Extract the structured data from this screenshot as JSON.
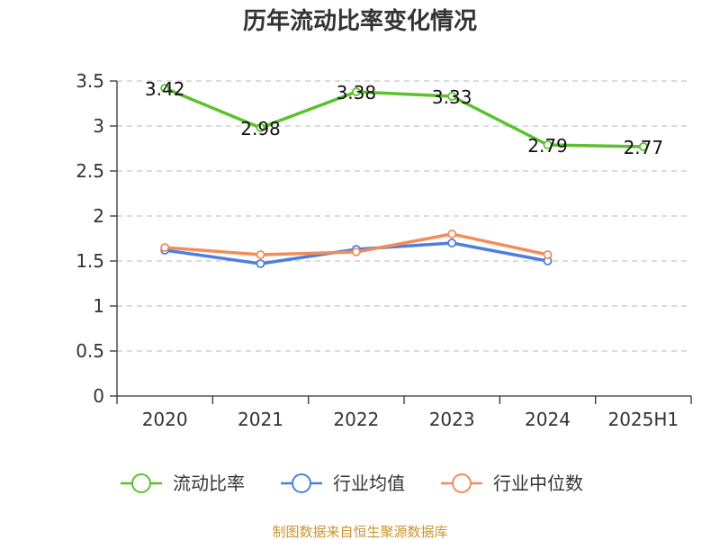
{
  "colors": {
    "current_ratio": "#5bc22b",
    "industry_mean": "#4e7fde",
    "industry_median": "#f28d5b",
    "grid": "#c8c8c8",
    "axis": "#333333",
    "footer": "#c8962e"
  },
  "chart_data": {
    "type": "line",
    "title": "历年流动比率变化情况",
    "categories": [
      "2020",
      "2021",
      "2022",
      "2023",
      "2024",
      "2025H1"
    ],
    "ylim": [
      0,
      3.5
    ],
    "yticks": [
      "0",
      "0.5",
      "1",
      "1.5",
      "2",
      "2.5",
      "3",
      "3.5"
    ],
    "grid": "horizontal-dashed",
    "legend_position": "bottom",
    "series": [
      {
        "name": "流动比率",
        "color_key": "current_ratio",
        "values": [
          3.42,
          2.98,
          3.38,
          3.33,
          2.79,
          2.77
        ],
        "labels": [
          "3.42",
          "2.98",
          "3.38",
          "3.33",
          "2.79",
          "2.77"
        ]
      },
      {
        "name": "行业均值",
        "color_key": "industry_mean",
        "values": [
          1.62,
          1.47,
          1.63,
          1.7,
          1.5,
          null
        ]
      },
      {
        "name": "行业中位数",
        "color_key": "industry_median",
        "values": [
          1.65,
          1.57,
          1.6,
          1.8,
          1.57,
          null
        ]
      }
    ],
    "footer": "制图数据来自恒生聚源数据库"
  }
}
